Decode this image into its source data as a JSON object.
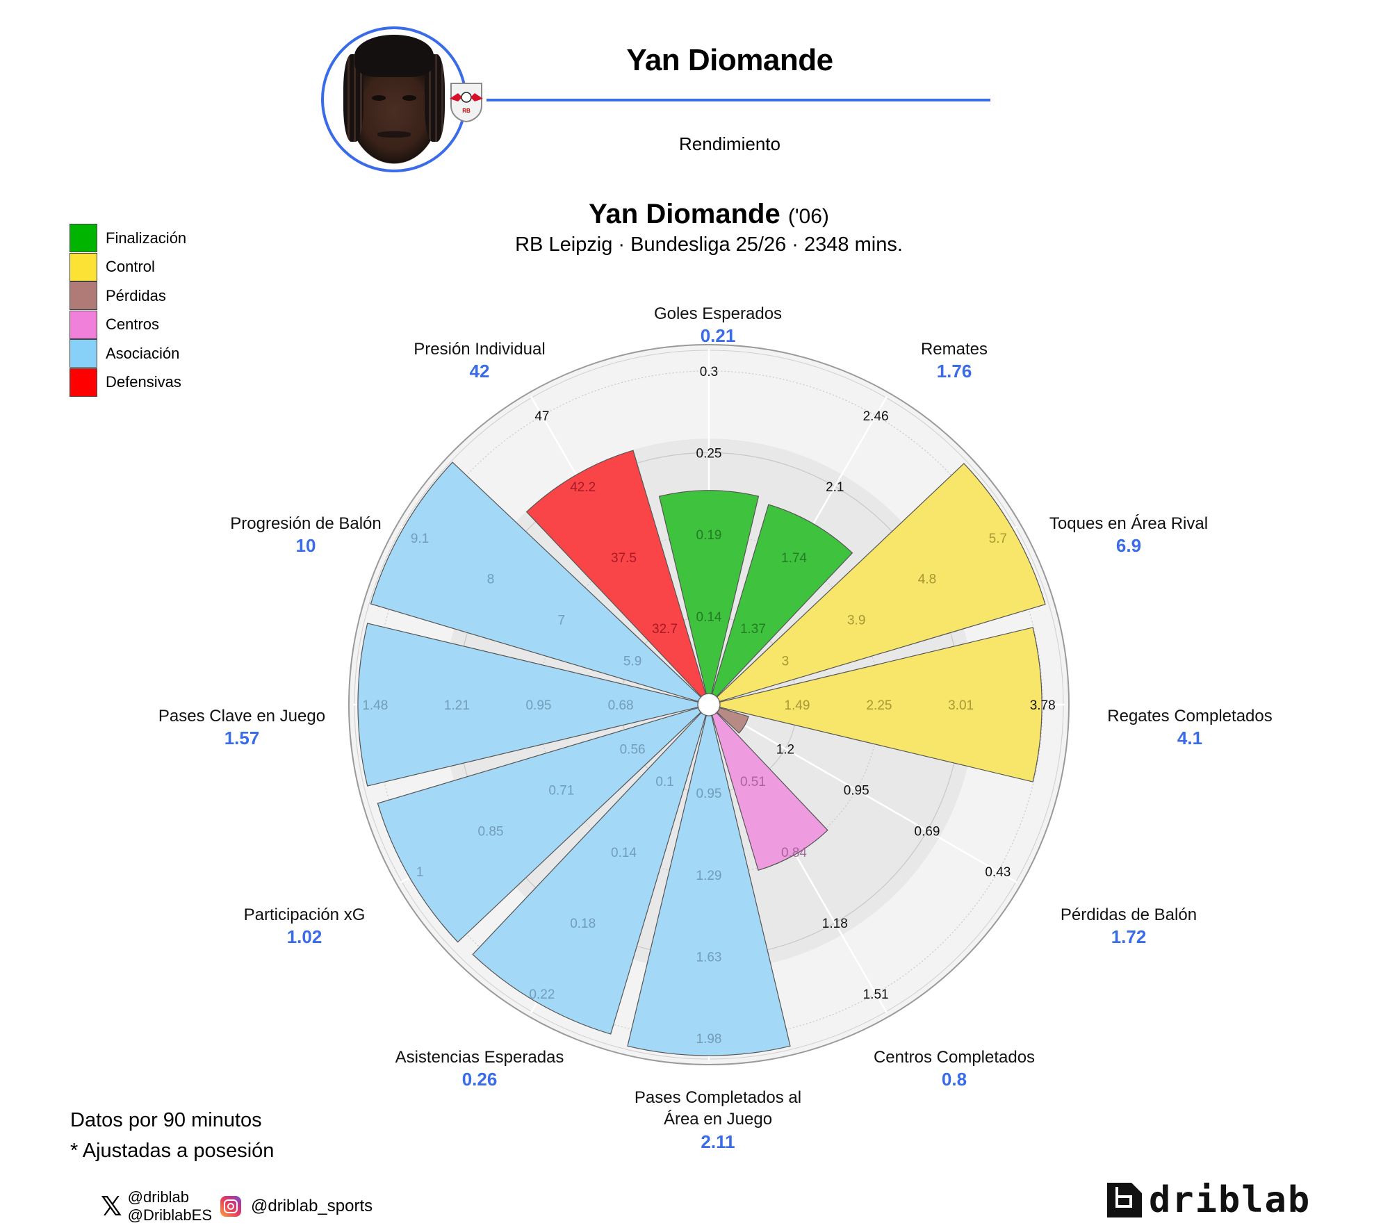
{
  "header": {
    "player_name": "Yan Diomande",
    "subtitle": "Rendimiento",
    "accent_color": "#3a6be8",
    "photo": "player-photo",
    "club_crest": "rb-leipzig-crest"
  },
  "chart_title": {
    "name": "Yan Diomande",
    "birth_year": "('06)",
    "subtitle": "RB Leipzig · Bundesliga 25/26 · 2348 mins."
  },
  "legend": {
    "items": [
      {
        "label": "Finalización",
        "color": "#00b400"
      },
      {
        "label": "Control",
        "color": "#fce234"
      },
      {
        "label": "Pérdidas",
        "color": "#b07a76"
      },
      {
        "label": "Centros",
        "color": "#f080da"
      },
      {
        "label": "Asociación",
        "color": "#87d0f8"
      },
      {
        "label": "Defensivas",
        "color": "#ff0000"
      }
    ]
  },
  "chart_data": {
    "type": "polar-bar",
    "title": "Yan Diomande ('06)",
    "subtitle": "RB Leipzig · Bundesliga 25/26 · 2348 mins.",
    "units": "per 90 minutes",
    "categories": [
      "Goles Esperados",
      "Remates",
      "Toques en Área Rival",
      "Regates Completados",
      "Pérdidas de Balón",
      "Centros Completados",
      "Pases Completados al Área en Juego",
      "Asistencias Esperadas",
      "Participación xG",
      "Pases Clave en Juego",
      "Progresión de Balón",
      "Presión Individual"
    ],
    "values": [
      0.21,
      1.76,
      6.9,
      4.1,
      1.72,
      0.8,
      2.11,
      0.26,
      1.02,
      1.57,
      10,
      42
    ],
    "groups": [
      "Finalización",
      "Finalización",
      "Control",
      "Control",
      "Pérdidas",
      "Centros",
      "Asociación",
      "Asociación",
      "Asociación",
      "Asociación",
      "Asociación",
      "Defensivas"
    ],
    "axis_ticks": [
      [
        "0.14",
        "0.19",
        "0.25",
        "0.3"
      ],
      [
        "1.37",
        "1.74",
        "2.1",
        "2.46"
      ],
      [
        "3",
        "3.9",
        "4.8",
        "5.7"
      ],
      [
        "1.49",
        "2.25",
        "3.01",
        "3.78"
      ],
      [
        "1.2",
        "0.95",
        "0.69",
        "0.43"
      ],
      [
        "0.51",
        "0.84",
        "1.18",
        "1.51"
      ],
      [
        "0.95",
        "1.29",
        "1.63",
        "1.98"
      ],
      [
        "0.1",
        "0.14",
        "0.18",
        "0.22"
      ],
      [
        "0.56",
        "0.71",
        "0.85",
        "1"
      ],
      [
        "0.68",
        "0.95",
        "1.21",
        "1.48"
      ],
      [
        "5.9",
        "7",
        "8",
        "9.1"
      ],
      [
        "32.7",
        "37.5",
        "42.2",
        "47"
      ]
    ],
    "bar_extent_fraction": [
      0.595,
      0.58,
      0.975,
      0.925,
      0.115,
      0.48,
      0.975,
      0.955,
      0.96,
      0.975,
      0.98,
      0.737
    ],
    "ring_fractions": [
      0.245,
      0.473,
      0.7,
      0.927
    ],
    "grid": true,
    "legend_position": "top-left"
  },
  "footer": {
    "note1": "Datos por 90 minutos",
    "note2": "* Ajustadas a posesión",
    "x_handle_1": "@driblab",
    "x_handle_2": "@DriblabES",
    "instagram_handle": "@driblab_sports",
    "brand": "driblab"
  }
}
